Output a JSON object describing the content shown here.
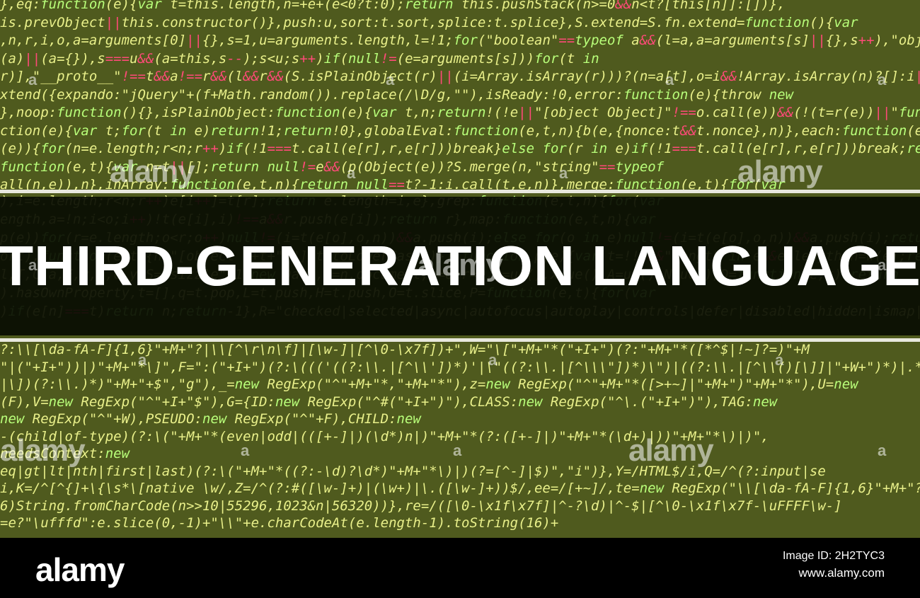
{
  "title": "THIRD-GENERATION LANGUAGE",
  "watermark": "alamy",
  "footer": {
    "logo": "alamy",
    "image_id_line": "Image ID: 2H2TYC3",
    "url": "www.alamy.com"
  },
  "colors": {
    "background": "#4f5a1e",
    "code_text": "#e9f08a",
    "code_keyword": "#b9ff7a",
    "code_operator": "#ff4a78",
    "band": "#080c02",
    "title_text": "#ffffff",
    "footer_bg": "#000000"
  },
  "code_lines": [
    "},eq:function(e){var t=this.length,n=+e+(e<0?t:0);return this.pushStack(n>=0&&n<t?[this[n]]:[])},",
    "is.prevObject||this.constructor()},push:u,sort:t.sort,splice:t.splice},S.extend=S.fn.extend=function(){var",
    ",n,r,i,o,a=arguments[0]||{},s=1,u=arguments.length,l=!1;for(\"boolean\"==typeof a&&(l=a,a=arguments[s]||{},s++),\"object\"==",
    "(a)||(a={}),s===u&&(a=this,s--);s<u;s++)if(null!=(e=arguments[s]))for(t in",
    "r)],\"__proto__\"!==t&&a!==r&&(l&&r&&(S.isPlainObject(r)||(i=Array.isArray(r)))?(n=a[t],o=i&&!Array.isArray(n)?[]:i||S.isPl",
    "xtend({expando:\"jQuery\"+(f+Math.random()).replace(/\\D/g,\"\"),isReady:!0,error:function(e){throw new",
    "},noop:function(){},isPlainObject:function(e){var t,n;return!(!e||\"[object Object]\"!==o.call(e))&&(!(t=r(e))||\"function\"",
    "ction(e){var t;for(t in e)return!1;return!0},globalEval:function(e,t,n){b(e,{nonce:t&&t.nonce},n)},each:function(e,t){va",
    "(e)){for(n=e.length;r<n;r++)if(!1===t.call(e[r],r,e[r]))break}else for(r in e)if(!1===t.call(e[r],r,e[r]))break;return",
    "function(e,t){var n=t||[];return null!=e&&(p(Object(e))?S.merge(n,\"string\"==typeof",
    "all(n,e)),n},inArray:function(e,t,n){return null==t?-1:i.call(t,e,n)},merge:function(e,t){for(var",
    "),i=e.length;r<n;r++)e[i++]=t[r];return e.length=i,e},grep:function(e,t,n){for(var",
    "ength,a=!n;i<o;i++)!t(e[i],i)!==a&&r.push(e[i]);return r},map:function(e,t,n){var",
    "p(e))for(r=e.length;o<r;o++)null!=(i=t(e[o],o,n))&&a.push(i);else for(o in e)null!=(i=t(e[o],o,n))&&a.push(i);return",
    "ort),function(e,t){n[\"[object \"+t+\"]\"]=t.toLowerCase()});function p(e){var t=!!e&&\"length\"in e&&e.length,n=w(e);return\"function",
    "l,T,C,a,E,v,s,c,y,S=\"sizzle\"+1*new Date,p=n.document,k=0,r=0,m=ue(),x=ue(),A=ue(),N=ue(),D=function(e,t){return",
    ").hasOwnProperty,t=[],q=t.pop,L=t.push,H=t.push,O=t.slice,P=function(e,t){for(var",
    ")if(e[n]===t)return n;return-1},R=\"checked|selected|async|autofocus|autoplay|controls|defer|disabled|hidden|ismap|loop|mu",
    "?:\\\\[\\da-fA-F]{1,6}\"+M+\"?|\\\\[^\\r\\n\\f]|[\\w-]|[^\\0-\\x7f])+\",W=\"\\[\"+M+\"*(\"+I+\")(?:\"+M+\"*([*^$|!~]?=)\"+M",
    "\"|(\"+I+\"))|)\"+M+\"*\\]\",F=\":(\"+I+\")(?:\\((('((?:\\\\.|[^\\\\'])*)'|\\\"((?:\\\\.|[^\\\\\\\"])*)\\\")|((?:\\\\.|[^\\\\()[\\]]|\"+W+\")*)|.*)\\)|)\",B=new RegExp(M+\"+\",\"g\"),$=new",
    "|\\])(?:\\\\.)*)\"+M+\"+$\",\"g\"),_=new RegExp(\"^\"+M+\"*,\"+M+\"*\"),z=new RegExp(\"^\"+M+\"*([>+~]|\"+M+\")\"+M+\"*\"),U=new",
    "(F),V=new RegExp(\"^\"+I+\"$\"),G={ID:new RegExp(\"^#(\"+I+\")\"),CLASS:new RegExp(\"^\\.(\"+I+\")\"),TAG:new",
    "new RegExp(\"^\"+W),PSEUDO:new RegExp(\"^\"+F),CHILD:new",
    "-(child|of-type)(?:\\(\"+M+\"*(even|odd|(([+-]|)(\\d*)n|)\"+M+\"*(?:([+-]|)\"+M+\"*(\\d+)|))\"+M+\"*\\)|)\",",
    "needsContext:new",
    "eq|gt|lt|nth|first|last)(?:\\(\"+M+\"*((?:-\\d)?\\d*)\"+M+\"*\\)|)(?=[^-]|$)\",\"i\")},Y=/HTML$/i,Q=/^(?:input|se",
    "i,K=/^[^{]+\\{\\s*\\[native \\w/,Z=/^(?:#([\\w-]+)|(\\w+)|\\.([\\w-]+))$/,ee=/[+~]/,te=new RegExp(\"\\\\[\\da-fA-F]{1,6}\"+M+\"?|\\\\",
    "6)String.fromCharCode(n>>10|55296,1023&n|56320))},re=/([\\0-\\x1f\\x7f]|^-?\\d)|^-$|[^\\0-\\x1f\\x7f-\\uFFFF\\w-]",
    "=e?\"\\ufffd\":e.slice(0,-1)+\"\\\\\"+e.charCodeAt(e.length-1).toString(16)+"
  ]
}
